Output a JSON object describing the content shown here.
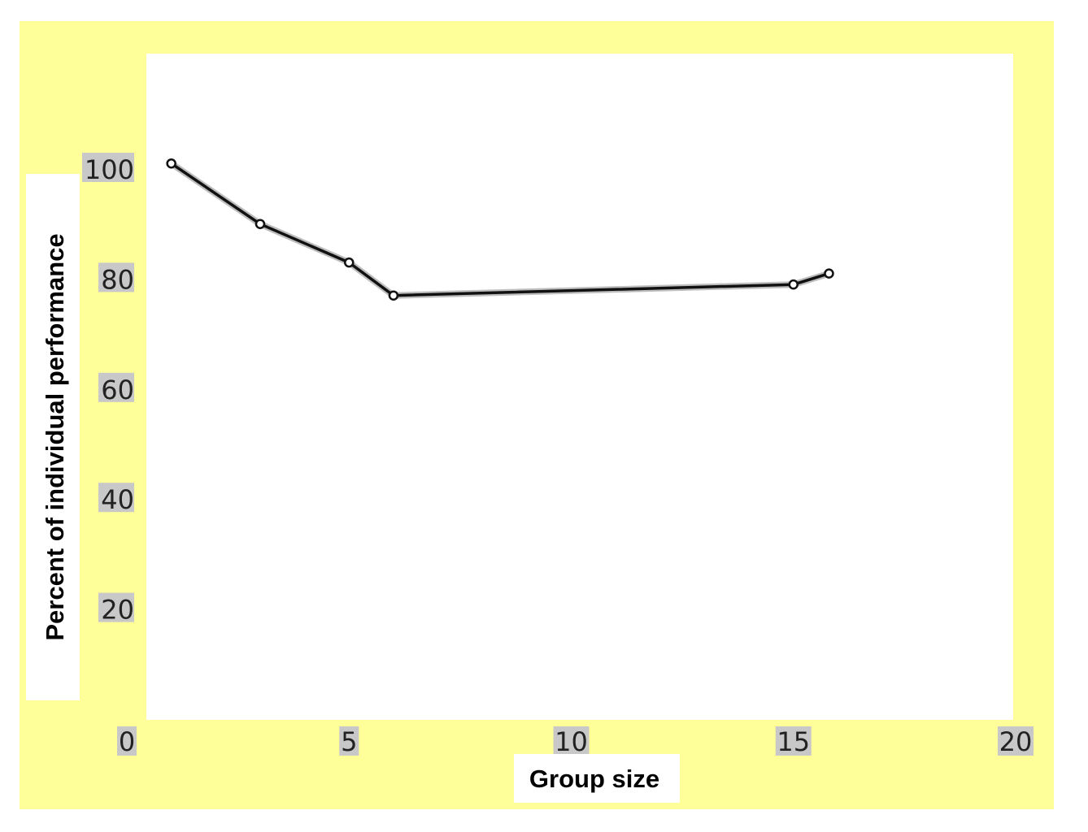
{
  "chart_data": {
    "type": "line",
    "xlabel": "Group size",
    "ylabel": "Percent of individual performance",
    "xlim": [
      0,
      20
    ],
    "ylim": [
      0,
      120
    ],
    "x_ticks": [
      "0",
      "5",
      "10",
      "15",
      "20"
    ],
    "y_ticks": [
      "20",
      "40",
      "60",
      "80",
      "100"
    ],
    "grid": false,
    "series": [
      {
        "x": [
          1,
          3,
          5,
          6,
          15,
          15.8
        ],
        "y": [
          101,
          90,
          83,
          77,
          79,
          81
        ]
      }
    ],
    "colors": {
      "background": "#ffff99",
      "plot_area": "#ffffff",
      "line": "#111111"
    }
  }
}
